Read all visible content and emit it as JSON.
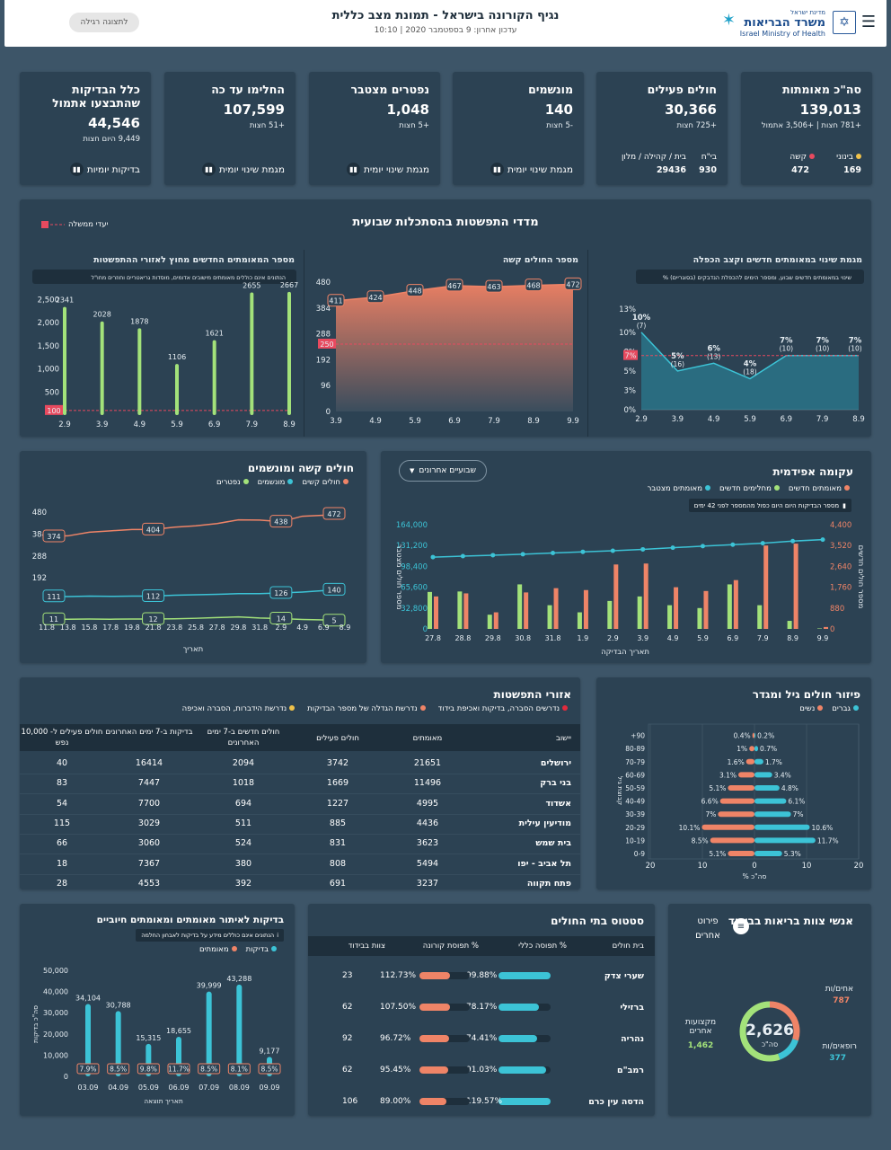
{
  "header": {
    "title": "נגיף הקורונה בישראל - תמונת מצב כללית",
    "updated": "עדכון אחרון: 9 בספטמבר 2020 | 10:10",
    "view_button": "לתצוגה רגילה",
    "ministry_top": "מדינת ישראל",
    "ministry_he": "משרד הבריאות",
    "ministry_en": "Israel Ministry of Health"
  },
  "kpis": [
    {
      "title": "סה\"כ מאומתות",
      "value": "139,013",
      "sub": "+781 חצות | +3,506 אתמול",
      "left1_label": "בינוני",
      "left1_value": "169",
      "left2_label": "קשה",
      "left2_value": "472"
    },
    {
      "title": "חולים פעילים",
      "value": "30,366",
      "sub": "+725 חצות",
      "left1_label": "בי\"ח",
      "left1_value": "930",
      "left2_label": "בית / קהילה / מלון",
      "left2_value": "29436"
    },
    {
      "title": "מונשמים",
      "value": "140",
      "sub": "-5 חצות",
      "link": "מגמת שינוי יומית"
    },
    {
      "title": "נפטרים מצטבר",
      "value": "1,048",
      "sub": "+5 חצות",
      "link": "מגמת שינוי יומית"
    },
    {
      "title": "החלימו עד כה",
      "value": "107,599",
      "sub": "+51 חצות",
      "link": "מגמת שינוי יומית"
    },
    {
      "title": "כלל הבדיקות שהתבצעו אתמול",
      "value": "44,546",
      "sub": "9,449 היום חצות",
      "link": "בדיקות יומיות"
    }
  ],
  "weekly": {
    "title": "מדדי התפשטות בהסתכלות שבועית",
    "legend": "יעדי ממשלה",
    "c1": {
      "title": "מגמת שינוי במאומתים חדשים וקצב הכפלה",
      "note": "% שינוי במאומתים חדשים שבוע, ומספר הימים להכפלת הנדבקים (בסוגריים)",
      "y_ticks": [
        "13%",
        "10%",
        "8%",
        "5%",
        "3%",
        "0%"
      ],
      "target": "7%"
    },
    "c2": {
      "title": "מספר החולים קשה",
      "y_ticks": [
        "480",
        "384",
        "288",
        "192",
        "96",
        "0"
      ],
      "target": "250"
    },
    "c3": {
      "title": "מספר המאומתים החדשים מחוץ לאזורי ההתפשטות",
      "note": "הנתונים אינם כוללים מאומתים מישובים אדומים, מוסדות גריאטריים וחוזרים מחו\"ל",
      "y_ticks": [
        "2,500",
        "2,000",
        "1,500",
        "1,000",
        "500"
      ],
      "target": "100"
    }
  },
  "epi": {
    "title": "עקומה אפידמית",
    "dropdown": "שבועיים אחרונים",
    "legend": [
      "מאומתים חדשים",
      "מחלימים חדשים",
      "מאומתים מצטבר"
    ],
    "note": "מספר הבדיקות היום היום כפול מהמספר לפני 42 ימים",
    "ylabel_right": "מספר חולים חדשים",
    "ylabel_left": "מספר חולים מצטבר",
    "xlabel": "תאריך הבדיקה",
    "left_ticks": [
      "164,000",
      "131,200",
      "98,400",
      "65,600",
      "32,800",
      "0"
    ],
    "right_ticks": [
      "4,400",
      "3,520",
      "2,640",
      "1,760",
      "880",
      "0"
    ]
  },
  "severe": {
    "title": "חולים קשה ומונשמים",
    "legend": [
      "חולים קשים",
      "מונשמים",
      "נפטרים"
    ],
    "xlabel": "תאריך",
    "y_ticks": [
      "480",
      "384",
      "288",
      "192"
    ]
  },
  "regions": {
    "title": "אזורי התפשטות",
    "legend": [
      "נדרשים הסברה, בדיקות ואכיפת בידוד",
      "נדרשת הגדלה של מספר הבדיקות",
      "נדרשת הידברות, הסברה ואכיפה"
    ],
    "headers": [
      "יישוב",
      "מאומתים",
      "חולים פעילים",
      "חולים חדשים ב-7 ימים האחרונים",
      "בדיקות ב-7 ימים האחרונים",
      "חולים פעילים ל- 10,000 נפש"
    ],
    "rows": [
      [
        "ירושלים",
        "21651",
        "3742",
        "2094",
        "16414",
        "40"
      ],
      [
        "בני ברק",
        "11496",
        "1669",
        "1018",
        "7447",
        "83"
      ],
      [
        "אשדוד",
        "4995",
        "1227",
        "694",
        "7700",
        "54"
      ],
      [
        "מודיעין עילית",
        "4436",
        "885",
        "511",
        "3029",
        "115"
      ],
      [
        "בית שמש",
        "3623",
        "831",
        "524",
        "3060",
        "66"
      ],
      [
        "תל אביב - יפו",
        "5494",
        "808",
        "380",
        "7367",
        "18"
      ],
      [
        "פתח תקווה",
        "3237",
        "691",
        "392",
        "4553",
        "28"
      ]
    ]
  },
  "age": {
    "title": "פיזור חולים גיל ומגדר",
    "legend": [
      "גברים",
      "נשים"
    ],
    "xlabel": "% סה\"כ",
    "ylabel": "קבוצת גיל",
    "x_ticks": [
      "20",
      "10",
      "0",
      "10",
      "20"
    ]
  },
  "staff": {
    "title": "אנשי צוות בריאות בבידוד",
    "detail": "פירוט אחרים",
    "total": "2,626",
    "total_label": "סה\"כ",
    "nurses_label": "אחים/ות",
    "nurses": "787",
    "doctors_label": "רופאים/ות",
    "doctors": "377",
    "other_label": "מקצועות אחרים",
    "other": "1,462"
  },
  "hospitals": {
    "title": "סטטוס בתי החולים",
    "headers": [
      "בית חולים",
      "% תפוסה כללי",
      "% תפוסת קורונה",
      "צוות בבידוד"
    ],
    "rows": [
      [
        "שערי צדק",
        "99.88%",
        "112.73%",
        "23"
      ],
      [
        "ברזילי",
        "78.17%",
        "107.50%",
        "62"
      ],
      [
        "נהריה",
        "74.41%",
        "96.72%",
        "92"
      ],
      [
        "רמב\"ם",
        "91.03%",
        "95.45%",
        "62"
      ],
      [
        "הדסה עין כרם",
        "119.57%",
        "89.00%",
        "106"
      ]
    ]
  },
  "tests": {
    "title": "בדיקות לאיתור מאומתים ומאומתים חיוביים",
    "note": "הנתונים אינם כוללים מידע על בדיקות לאבחון החלמה",
    "legend": [
      "בדיקות",
      "מאומתים"
    ],
    "xlabel": "תאריך תוצאה",
    "ylabel": "סה\"כ בדיקות",
    "y_ticks": [
      "50,000",
      "40,000",
      "30,000",
      "20,000",
      "10,000",
      "0"
    ]
  },
  "chart_data": [
    {
      "type": "line",
      "title": "מגמת שינוי במאומתים חדשים וקצב הכפלה",
      "x": [
        "2.9",
        "3.9",
        "4.9",
        "5.9",
        "6.9",
        "7.9",
        "8.9"
      ],
      "values": [
        10,
        5,
        6,
        4,
        7,
        7,
        7
      ],
      "labels": [
        "10%",
        "5%",
        "6%",
        "4%",
        "7%",
        "7%",
        "7%"
      ],
      "doubling": [
        "(7)",
        "(16)",
        "(13)",
        "(18)",
        "(10)",
        "(10)",
        "(10)"
      ],
      "ylim": [
        0,
        13
      ],
      "target": 7
    },
    {
      "type": "area",
      "title": "מספר החולים קשה",
      "x": [
        "3.9",
        "4.9",
        "5.9",
        "6.9",
        "7.9",
        "8.9",
        "9.9"
      ],
      "values": [
        411,
        424,
        448,
        467,
        463,
        468,
        472
      ],
      "ylim": [
        0,
        480
      ],
      "target": 250
    },
    {
      "type": "bar",
      "title": "מספר המאומתים החדשים מחוץ לאזורי ההתפשטות",
      "categories": [
        "2.9",
        "3.9",
        "4.9",
        "5.9",
        "6.9",
        "7.9",
        "8.9"
      ],
      "values": [
        2341,
        2028,
        1878,
        1106,
        1621,
        2655,
        2667
      ],
      "ylim": [
        0,
        2800
      ],
      "target": 100
    },
    {
      "type": "bar",
      "title": "עקומה אפידמית",
      "categories": [
        "27.8",
        "28.8",
        "29.8",
        "30.8",
        "31.8",
        "1.9",
        "2.9",
        "3.9",
        "4.9",
        "5.9",
        "6.9",
        "7.9",
        "8.9",
        "9.9"
      ],
      "series": [
        {
          "name": "מאומתים חדשים",
          "values": [
            1370,
            1500,
            700,
            1540,
            1720,
            1640,
            2720,
            2760,
            1760,
            1600,
            2060,
            3520,
            3600,
            80
          ]
        },
        {
          "name": "מחלימים חדשים",
          "values": [
            1560,
            1580,
            600,
            1880,
            1000,
            700,
            1180,
            1370,
            1000,
            880,
            1880,
            1000,
            340,
            20
          ]
        },
        {
          "name": "מאומתים מצטבר",
          "values": [
            113000,
            114500,
            116000,
            117500,
            119500,
            121300,
            123000,
            125200,
            127800,
            130200,
            132600,
            134900,
            138200,
            140500
          ]
        }
      ]
    },
    {
      "type": "line",
      "title": "חולים קשה ומונשמים",
      "x": [
        "11.8",
        "13.8",
        "15.8",
        "17.8",
        "19.8",
        "21.8",
        "23.8",
        "25.8",
        "27.8",
        "29.8",
        "31.8",
        "2.9",
        "4.9",
        "6.9",
        "8.9"
      ],
      "series": [
        {
          "name": "חולים קשים",
          "values": [
            374,
            376,
            392,
            398,
            404,
            404,
            414,
            420,
            430,
            446,
            445,
            438,
            462,
            466,
            472
          ]
        },
        {
          "name": "מונשמים",
          "values": [
            111,
            110,
            112,
            111,
            112,
            112,
            116,
            118,
            120,
            123,
            123,
            126,
            130,
            136,
            140
          ]
        },
        {
          "name": "נפטרים",
          "values": [
            11,
            11,
            12,
            11,
            12,
            12,
            13,
            15,
            18,
            21,
            16,
            14,
            10,
            8,
            5
          ]
        }
      ]
    },
    {
      "type": "bar",
      "title": "פיזור חולים גיל ומגדר",
      "categories": [
        "0-9",
        "10-19",
        "20-29",
        "30-39",
        "40-49",
        "50-59",
        "60-69",
        "70-79",
        "80-89",
        "+90"
      ],
      "series": [
        {
          "name": "גברים",
          "values": [
            5.3,
            11.7,
            10.6,
            7,
            6.1,
            4.8,
            3.4,
            1.7,
            0.7,
            0.2
          ]
        },
        {
          "name": "נשים",
          "values": [
            5.1,
            8.5,
            10.1,
            7,
            6.6,
            5.1,
            3.1,
            1.6,
            1,
            0.4
          ]
        }
      ]
    },
    {
      "type": "bar",
      "title": "בדיקות לאיתור מאומתים ומאומתים חיוביים",
      "categories": [
        "03.09",
        "04.09",
        "05.09",
        "06.09",
        "07.09",
        "08.09",
        "09.09"
      ],
      "series": [
        {
          "name": "בדיקות",
          "values": [
            34104,
            30788,
            15315,
            18655,
            39999,
            43288,
            9177
          ]
        }
      ],
      "positive_rate": [
        "7.9%",
        "8.5%",
        "9.8%",
        "11.7%",
        "8.5%",
        "8.1%",
        "8.5%"
      ],
      "ylim": [
        0,
        50000
      ]
    }
  ]
}
